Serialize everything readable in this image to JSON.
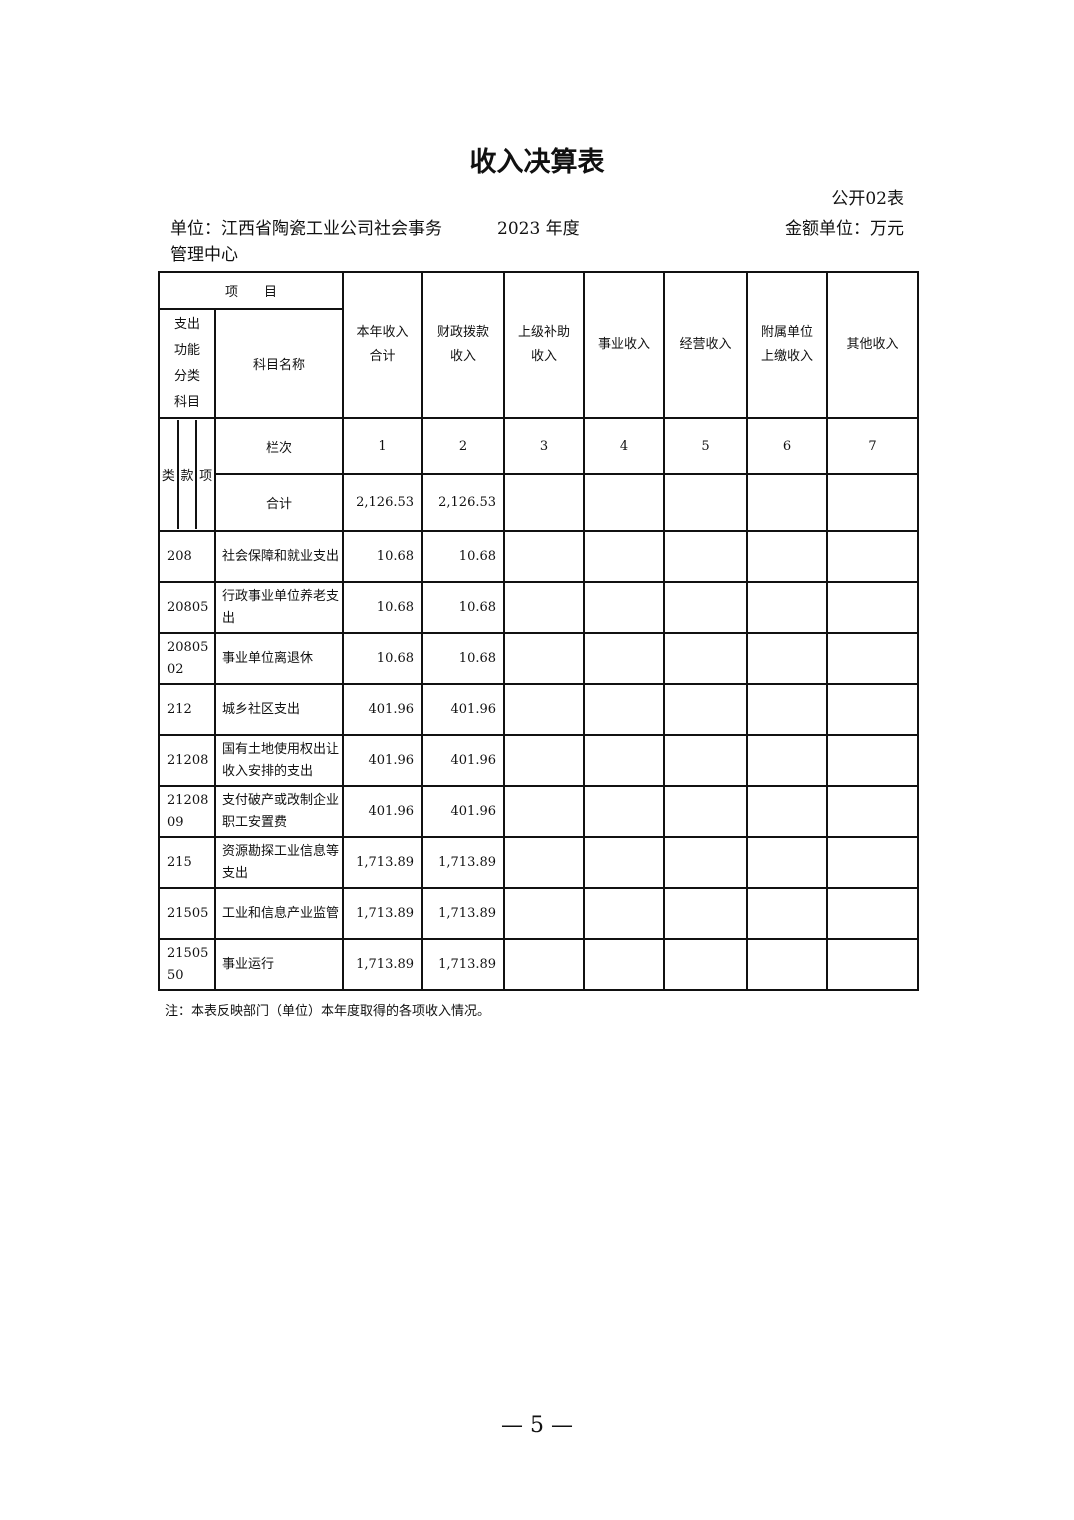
{
  "title": "收入决算表",
  "table_code": "公开02表",
  "unit_label": "单位：江西省陶瓷工业公司社会事务管理中心",
  "year": "2023 年度",
  "money_unit": "金额单位：万元",
  "headers": {
    "item": "项　　目",
    "func_class": "支出功能分类科目",
    "subject_name": "科目名称",
    "lei": "类",
    "kuan": "款",
    "xiang": "项",
    "col_index_label": "栏次",
    "total_label": "合计",
    "columns": [
      "本年收入合计",
      "财政拨款收入",
      "上级补助收入",
      "事业收入",
      "经营收入",
      "附属单位上缴收入",
      "其他收入"
    ],
    "column_numbers": [
      "1",
      "2",
      "3",
      "4",
      "5",
      "6",
      "7"
    ]
  },
  "totals": [
    "2,126.53",
    "2,126.53",
    "",
    "",
    "",
    "",
    ""
  ],
  "rows": [
    {
      "code": "208",
      "name": "社会保障和就业支出",
      "values": [
        "10.68",
        "10.68",
        "",
        "",
        "",
        "",
        ""
      ]
    },
    {
      "code": "20805",
      "name": "行政事业单位养老支出",
      "values": [
        "10.68",
        "10.68",
        "",
        "",
        "",
        "",
        ""
      ]
    },
    {
      "code": "2080502",
      "name": "事业单位离退休",
      "values": [
        "10.68",
        "10.68",
        "",
        "",
        "",
        "",
        ""
      ]
    },
    {
      "code": "212",
      "name": "城乡社区支出",
      "values": [
        "401.96",
        "401.96",
        "",
        "",
        "",
        "",
        ""
      ]
    },
    {
      "code": "21208",
      "name": "国有土地使用权出让收入安排的支出",
      "values": [
        "401.96",
        "401.96",
        "",
        "",
        "",
        "",
        ""
      ]
    },
    {
      "code": "2120809",
      "name": "支付破产或改制企业职工安置费",
      "values": [
        "401.96",
        "401.96",
        "",
        "",
        "",
        "",
        ""
      ]
    },
    {
      "code": "215",
      "name": "资源勘探工业信息等支出",
      "values": [
        "1,713.89",
        "1,713.89",
        "",
        "",
        "",
        "",
        ""
      ]
    },
    {
      "code": "21505",
      "name": "工业和信息产业监管",
      "values": [
        "1,713.89",
        "1,713.89",
        "",
        "",
        "",
        "",
        ""
      ]
    },
    {
      "code": "2150550",
      "name": "事业运行",
      "values": [
        "1,713.89",
        "1,713.89",
        "",
        "",
        "",
        "",
        ""
      ]
    }
  ],
  "note": "注：本表反映部门（单位）本年度取得的各项收入情况。",
  "page_number": "— 5 —"
}
